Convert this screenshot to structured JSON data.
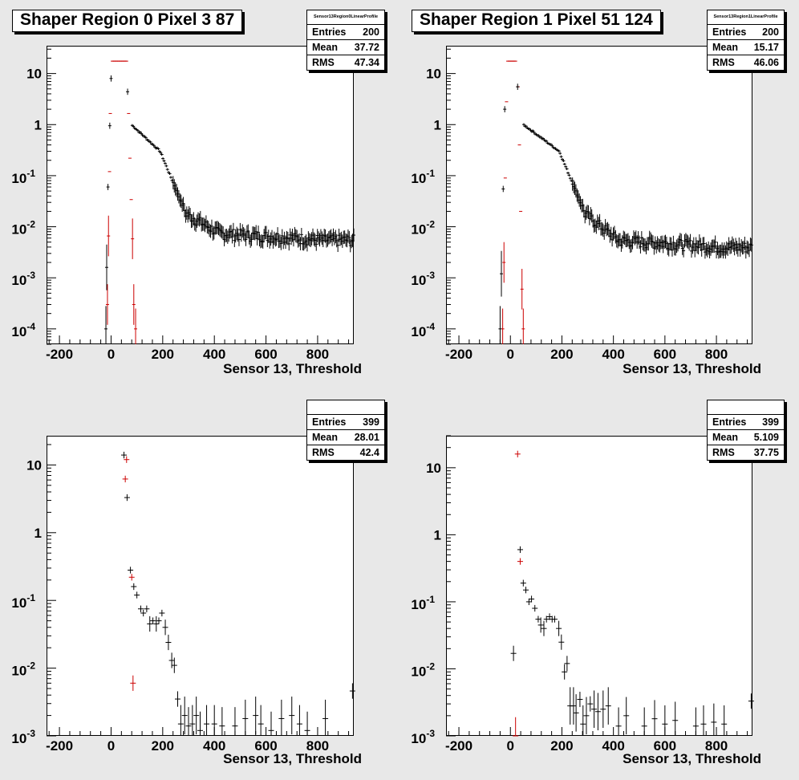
{
  "colors": {
    "black": "#000000",
    "red": "#cc0000",
    "background": "#e8e8e8"
  },
  "chart_data": [
    {
      "type": "scatter",
      "title": "Shaper Region 0 Pixel 3 87",
      "stats_name": "Sensor13Region0LinearProfile",
      "stats": [
        {
          "label": "Entries",
          "value": "200"
        },
        {
          "label": "Mean",
          "value": "37.72"
        },
        {
          "label": "RMS",
          "value": "47.34"
        }
      ],
      "xlabel": "Sensor 13, Threshold",
      "x_ticks": [
        "-200",
        "0",
        "200",
        "400",
        "600",
        "800"
      ],
      "y_ticks": [
        "10",
        "1",
        "10-1",
        "10-2",
        "10-3",
        "10-4"
      ],
      "xlim": [
        -250,
        940
      ],
      "ylim": [
        5e-05,
        35
      ],
      "log_y": true,
      "series": [
        {
          "color": "red",
          "points": [
            [
              -14,
              0.0003
            ],
            [
              -10,
              0.0066
            ],
            [
              -6,
              0.12
            ],
            [
              -3,
              1.65
            ],
            [
              5,
              17.5
            ],
            [
              10,
              17.5
            ],
            [
              15,
              17.5
            ],
            [
              20,
              17.5
            ],
            [
              25,
              17.5
            ],
            [
              30,
              17.5
            ],
            [
              35,
              17.5
            ],
            [
              40,
              17.5
            ],
            [
              45,
              17.5
            ],
            [
              50,
              17.5
            ],
            [
              55,
              17.5
            ],
            [
              60,
              17.5
            ],
            [
              68,
              1.65
            ],
            [
              73,
              0.22
            ],
            [
              78,
              0.034
            ],
            [
              83,
              0.0058
            ],
            [
              88,
              0.0003
            ],
            [
              95,
              0.0001
            ]
          ]
        },
        {
          "color": "black",
          "shape": "decay",
          "params": {
            "x0": 70,
            "x1": 940,
            "step": 4.4,
            "knee": 215,
            "tail": 0.0055
          },
          "extra_points": [
            [
              -20,
              0.0001
            ],
            [
              -17,
              0.0016
            ],
            [
              -12,
              0.06
            ],
            [
              -5,
              0.95
            ],
            [
              0,
              8
            ],
            [
              64,
              4.4
            ]
          ]
        }
      ]
    },
    {
      "type": "scatter",
      "title": "Shaper Region 1 Pixel 51 124",
      "stats_name": "Sensor13Region1LinearProfile",
      "stats": [
        {
          "label": "Entries",
          "value": "200"
        },
        {
          "label": "Mean",
          "value": "15.17"
        },
        {
          "label": "RMS",
          "value": "46.06"
        }
      ],
      "xlabel": "Sensor 13, Threshold",
      "x_ticks": [
        "-200",
        "0",
        "200",
        "400",
        "600",
        "800"
      ],
      "y_ticks": [
        "10",
        "1",
        "10-1",
        "10-2",
        "10-3",
        "10-4"
      ],
      "xlim": [
        -250,
        940
      ],
      "ylim": [
        5e-05,
        35
      ],
      "log_y": true,
      "series": [
        {
          "color": "red",
          "points": [
            [
              -30,
              0.0001
            ],
            [
              -25,
              0.002
            ],
            [
              -20,
              0.09
            ],
            [
              -15,
              2.8
            ],
            [
              -10,
              17.5
            ],
            [
              -5,
              17.5
            ],
            [
              0,
              17.5
            ],
            [
              5,
              17.5
            ],
            [
              10,
              17.5
            ],
            [
              15,
              17.5
            ],
            [
              20,
              17.5
            ],
            [
              30,
              5.5
            ],
            [
              35,
              0.4
            ],
            [
              40,
              0.02
            ],
            [
              45,
              0.0006
            ],
            [
              50,
              0.0001
            ]
          ]
        },
        {
          "color": "black",
          "shape": "decay",
          "params": {
            "x0": 40,
            "x1": 940,
            "step": 4.4,
            "knee": 215,
            "tail": 0.004
          },
          "extra_points": [
            [
              -40,
              0.0001
            ],
            [
              -35,
              0.0012
            ],
            [
              -28,
              0.055
            ],
            [
              -22,
              2.0
            ],
            [
              28,
              5.5
            ]
          ]
        }
      ]
    },
    {
      "type": "scatter",
      "title": "",
      "stats_name": "",
      "stats": [
        {
          "label": "Entries",
          "value": "399"
        },
        {
          "label": "Mean",
          "value": "28.01"
        },
        {
          "label": "RMS",
          "value": "42.4"
        }
      ],
      "xlabel": "Sensor 13, Threshold",
      "x_ticks": [
        "-200",
        "0",
        "200",
        "400",
        "600",
        "800"
      ],
      "y_ticks": [
        "10",
        "1",
        "10-1",
        "10-2",
        "10-3"
      ],
      "xlim": [
        -250,
        940
      ],
      "ylim": [
        0.001,
        27
      ],
      "log_y": true,
      "series": [
        {
          "color": "red",
          "points": [
            [
              55,
              6.2
            ],
            [
              60,
              12
            ],
            [
              80,
              0.22
            ],
            [
              85,
              0.006
            ]
          ]
        },
        {
          "color": "black",
          "points": [
            [
              50,
              14
            ],
            [
              62,
              3.3
            ],
            [
              75,
              0.28
            ],
            [
              88,
              0.16
            ],
            [
              100,
              0.12
            ],
            [
              115,
              0.075
            ],
            [
              125,
              0.065
            ],
            [
              138,
              0.075
            ],
            [
              150,
              0.045
            ],
            [
              162,
              0.05
            ],
            [
              175,
              0.045
            ],
            [
              185,
              0.05
            ],
            [
              197,
              0.065
            ],
            [
              210,
              0.04
            ],
            [
              222,
              0.024
            ],
            [
              235,
              0.013
            ],
            [
              245,
              0.011
            ],
            [
              258,
              0.0035
            ],
            [
              270,
              0.0015
            ],
            [
              285,
              0.002
            ],
            [
              300,
              0.0014
            ],
            [
              315,
              0.0015
            ],
            [
              330,
              0.002
            ],
            [
              345,
              0.0012
            ],
            [
              370,
              0.0015
            ],
            [
              400,
              0.0015
            ],
            [
              430,
              0.0014
            ],
            [
              480,
              0.0014
            ],
            [
              520,
              0.0018
            ],
            [
              560,
              0.002
            ],
            [
              580,
              0.0015
            ],
            [
              620,
              0.0012
            ],
            [
              660,
              0.0018
            ],
            [
              700,
              0.002
            ],
            [
              730,
              0.0015
            ],
            [
              760,
              0.0012
            ],
            [
              830,
              0.0018
            ],
            [
              935,
              0.0046
            ]
          ]
        }
      ]
    },
    {
      "type": "scatter",
      "title": "",
      "stats_name": "",
      "stats": [
        {
          "label": "Entries",
          "value": "399"
        },
        {
          "label": "Mean",
          "value": "5.109"
        },
        {
          "label": "RMS",
          "value": "37.75"
        }
      ],
      "xlabel": "Sensor 13, Threshold",
      "x_ticks": [
        "-200",
        "0",
        "200",
        "400",
        "600",
        "800"
      ],
      "y_ticks": [
        "10",
        "1",
        "10-1",
        "10-2",
        "10-3"
      ],
      "xlim": [
        -250,
        940
      ],
      "ylim": [
        0.001,
        30
      ],
      "log_y": true,
      "series": [
        {
          "color": "red",
          "points": [
            [
              20,
              0.001
            ],
            [
              28,
              16
            ],
            [
              38,
              0.4
            ]
          ]
        },
        {
          "color": "black",
          "points": [
            [
              12,
              0.017
            ],
            [
              38,
              0.6
            ],
            [
              50,
              0.19
            ],
            [
              60,
              0.15
            ],
            [
              72,
              0.1
            ],
            [
              82,
              0.11
            ],
            [
              95,
              0.08
            ],
            [
              108,
              0.055
            ],
            [
              118,
              0.045
            ],
            [
              130,
              0.04
            ],
            [
              140,
              0.055
            ],
            [
              152,
              0.06
            ],
            [
              162,
              0.055
            ],
            [
              172,
              0.055
            ],
            [
              188,
              0.04
            ],
            [
              198,
              0.025
            ],
            [
              210,
              0.009
            ],
            [
              220,
              0.012
            ],
            [
              232,
              0.0028
            ],
            [
              245,
              0.0028
            ],
            [
              255,
              0.0022
            ],
            [
              270,
              0.0035
            ],
            [
              282,
              0.0015
            ],
            [
              295,
              0.002
            ],
            [
              310,
              0.003
            ],
            [
              325,
              0.0025
            ],
            [
              340,
              0.0023
            ],
            [
              360,
              0.0025
            ],
            [
              380,
              0.0028
            ],
            [
              420,
              0.0014
            ],
            [
              450,
              0.002
            ],
            [
              520,
              0.0014
            ],
            [
              560,
              0.0018
            ],
            [
              600,
              0.0015
            ],
            [
              640,
              0.0017
            ],
            [
              720,
              0.0014
            ],
            [
              750,
              0.0015
            ],
            [
              790,
              0.0016
            ],
            [
              830,
              0.0015
            ],
            [
              935,
              0.0033
            ]
          ]
        }
      ]
    }
  ]
}
